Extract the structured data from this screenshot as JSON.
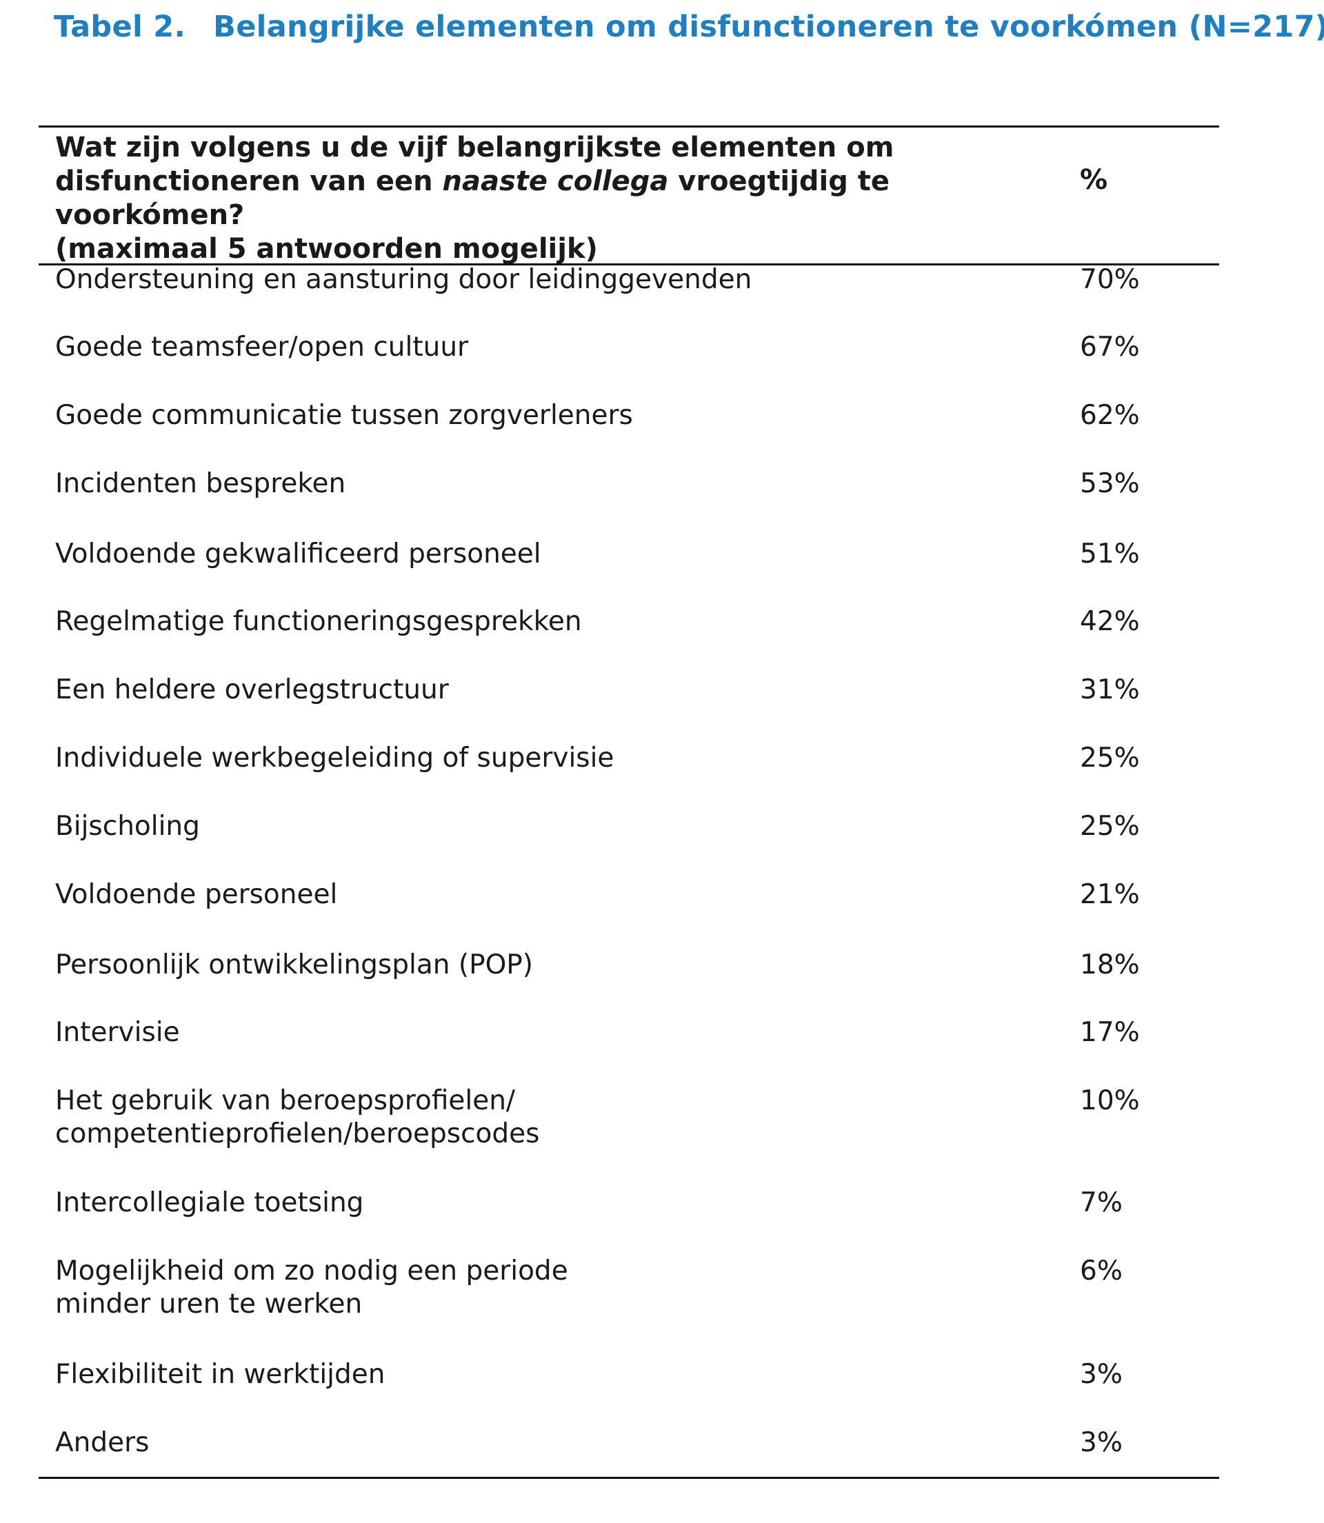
{
  "caption": {
    "label": "Tabel 2.",
    "title": "Belangrijke elementen om disfunctioneren te voorkómen (N=217)"
  },
  "table": {
    "header": {
      "question_part1": "Wat zijn volgens u de vijf belangrijkste elementen om disfunctioneren van een ",
      "question_italic": "naaste collega",
      "question_part2": " vroegtijdig te voorkómen?",
      "note": "(maximaal 5 antwoorden mogelijk)",
      "col_pct": "%"
    },
    "rows": [
      {
        "label": "Ondersteuning en aansturing door leidinggevenden",
        "value": "70%"
      },
      {
        "label": "Goede teamsfeer/open cultuur",
        "value": "67%"
      },
      {
        "label": "Goede communicatie tussen zorgverleners",
        "value": "62%"
      },
      {
        "label": "Incidenten bespreken",
        "value": "53%"
      },
      {
        "label": "Voldoende gekwalificeerd personeel",
        "value": "51%"
      },
      {
        "label": "Regelmatige functioneringsgesprekken",
        "value": "42%"
      },
      {
        "label": "Een heldere overlegstructuur",
        "value": "31%"
      },
      {
        "label": "Individuele werkbegeleiding of supervisie",
        "value": "25%"
      },
      {
        "label": "Bijscholing",
        "value": "25%"
      },
      {
        "label": "Voldoende personeel",
        "value": "21%"
      },
      {
        "label": "Persoonlijk ontwikkelingsplan (POP)",
        "value": "18%"
      },
      {
        "label": "Intervisie",
        "value": "17%"
      },
      {
        "label": "Het gebruik van beroepsprofielen/\ncompetentieprofielen/beroepscodes",
        "value": "10%"
      },
      {
        "label": "Intercollegiale toetsing",
        "value": "7%"
      },
      {
        "label": "Mogelijkheid om zo nodig een periode\nminder uren te werken",
        "value": "6%"
      },
      {
        "label": "Flexibiliteit in werktijden",
        "value": "3%"
      },
      {
        "label": "Anders",
        "value": "3%"
      }
    ]
  }
}
